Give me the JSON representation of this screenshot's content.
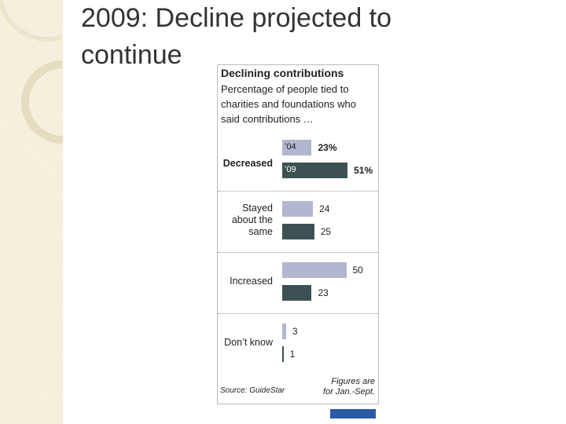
{
  "title": "2009: Decline projected to continue",
  "chart_data": {
    "type": "bar",
    "orientation": "horizontal",
    "title": "Declining contributions",
    "subtitle": "Percentage of people tied to charities and foundations who said contributions …",
    "categories": [
      "Decreased",
      "Stayed about the same",
      "Increased",
      "Don’t know"
    ],
    "series": [
      {
        "name": "’04",
        "color": "#b3b6cf",
        "values": [
          23,
          24,
          50,
          3
        ],
        "value_labels": [
          "23%",
          "24",
          "50",
          "3"
        ]
      },
      {
        "name": "’09",
        "color": "#3d5152",
        "values": [
          51,
          25,
          23,
          1
        ],
        "value_labels": [
          "51%",
          "25",
          "23",
          "1"
        ]
      }
    ],
    "source": "Source: GuideStar",
    "note": "Figures are for Jan.-Sept."
  }
}
